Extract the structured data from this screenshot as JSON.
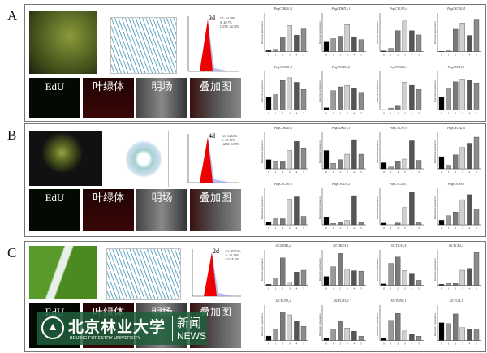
{
  "panels": [
    {
      "label": "A",
      "flow_day": "3d",
      "flow_stats": [
        "G1: 54.78%",
        "S: 20.7%",
        "G2/M: 24.52%"
      ],
      "micro": [
        "EdU",
        "叶绿体",
        "明场",
        "叠加图"
      ],
      "charts": [
        {
          "title": "PagCDKB1;2",
          "ylim": 4,
          "values": [
            0.1,
            0.25,
            1.5,
            2.7,
            1.7,
            2.35
          ]
        },
        {
          "title": "PagCDKD1;1",
          "ylim": 4,
          "values": [
            1,
            1.35,
            1.6,
            2.8,
            1.55,
            1.25
          ]
        },
        {
          "title": "PagCYCA3;4",
          "ylim": 1.2,
          "values": [
            0.02,
            0.1,
            0.65,
            0.95,
            0.65,
            0.52
          ]
        },
        {
          "title": "PagCYCB2;4",
          "ylim": 2.5,
          "values": [
            0.01,
            0.05,
            1.45,
            1.85,
            1.05,
            2.05
          ]
        },
        {
          "title": "PagCYCD1;2",
          "ylim": 3,
          "values": [
            1,
            1.2,
            2.3,
            2.5,
            2.15,
            1.6
          ]
        },
        {
          "title": "PagCYCD3;2",
          "ylim": 10,
          "values": [
            0.6,
            5,
            6,
            6.4,
            5.7,
            4.6
          ]
        },
        {
          "title": "PagCYCD6;1",
          "ylim": 10,
          "values": [
            0.1,
            0.5,
            1,
            7.2,
            6.4,
            5.3
          ]
        },
        {
          "title": "PagCYCH;1",
          "ylim": 3,
          "values": [
            1,
            1.7,
            2.2,
            2.4,
            2.3,
            2.1
          ]
        }
      ]
    },
    {
      "label": "B",
      "flow_day": "4d",
      "flow_stats": [
        "G1: 64.60%",
        "S: 25.10%",
        "G2/M: 3.50%"
      ],
      "micro": [
        "EdU",
        "叶绿体",
        "明场",
        "叠加图"
      ],
      "charts": [
        {
          "title": "PagCDKB1;2",
          "ylim": 4,
          "values": [
            1,
            0.8,
            0.85,
            2,
            3,
            2.3
          ]
        },
        {
          "title": "PagCDKD1;1",
          "ylim": 2,
          "values": [
            1,
            0.3,
            0.5,
            0.8,
            1.6,
            0.8
          ]
        },
        {
          "title": "PagCYCA3;4",
          "ylim": 6,
          "values": [
            1,
            0.3,
            1.2,
            1.6,
            4.6,
            1.4
          ]
        },
        {
          "title": "PagCYCB2;4",
          "ylim": 3,
          "values": [
            1,
            0.3,
            1.15,
            1.75,
            2.1,
            2.6
          ]
        },
        {
          "title": "PagCYCD1;2",
          "ylim": 15,
          "values": [
            1,
            2.5,
            2.5,
            10.5,
            11.5,
            3.5
          ]
        },
        {
          "title": "PagCYCD3;2",
          "ylim": 5,
          "values": [
            1,
            0.2,
            0.4,
            0.6,
            4,
            0.3
          ]
        },
        {
          "title": "PagCYCD6;1",
          "ylim": 20,
          "values": [
            1,
            0,
            1,
            9.5,
            18,
            1.5
          ]
        },
        {
          "title": "PagCYCH;1",
          "ylim": 8,
          "values": [
            1,
            2,
            2.8,
            5.5,
            6.6,
            3.5
          ]
        }
      ]
    },
    {
      "label": "C",
      "flow_day": "2d",
      "flow_stats": [
        "G1: 83.73%",
        "S: 10.29%",
        "G2/M: 6%"
      ],
      "micro": [
        "EdU",
        "叶绿体",
        "明场",
        "叠加图"
      ],
      "charts": [
        {
          "title": "SlCDKB1;2",
          "ylim": 4,
          "values": [
            0.1,
            0.8,
            3.1,
            0.4,
            1.5,
            1.7
          ]
        },
        {
          "title": "SlCDKD1;1",
          "ylim": 4,
          "values": [
            1,
            2.1,
            3.6,
            1.8,
            1.65,
            1.6
          ]
        },
        {
          "title": "SlCYCA3;4",
          "ylim": 25,
          "values": [
            1,
            15.5,
            20,
            10.5,
            8,
            3.5
          ]
        },
        {
          "title": "SlCYCB2;4",
          "ylim": 40,
          "values": [
            1,
            2,
            2,
            17,
            19,
            37
          ]
        },
        {
          "title": "SlCYCD1;2",
          "ylim": 8,
          "values": [
            1,
            2.5,
            6.5,
            5.8,
            4.4,
            3.2
          ]
        },
        {
          "title": "SlCYCD3;2",
          "ylim": 2.5,
          "values": [
            0.15,
            0.75,
            1.4,
            0.88,
            0.65,
            0.3
          ]
        },
        {
          "title": "SlCYCD6;1",
          "ylim": 15,
          "values": [
            1,
            8.5,
            11.5,
            4,
            2.5,
            1.8
          ]
        },
        {
          "title": "SlCYCH;1",
          "ylim": 2,
          "values": [
            1,
            0.95,
            1.5,
            0.72,
            0.65,
            0.6
          ]
        }
      ]
    }
  ],
  "chart_common": {
    "type": "bar",
    "categories": [
      "0",
      "1",
      "2",
      "3",
      "4",
      "5"
    ],
    "ylabel": "Relative expression",
    "bar_colors": [
      "#000000",
      "#9a9a9a",
      "#7a7a7a",
      "#d0d0d0",
      "#555555",
      "#8c8c8c"
    ]
  },
  "watermark": {
    "cn": "北京林业大学",
    "en": "BEIJING FORESTRY UNIVERSITY",
    "news_cn": "新闻",
    "news_en": "NEWS",
    "color": "#1e5f3c"
  }
}
